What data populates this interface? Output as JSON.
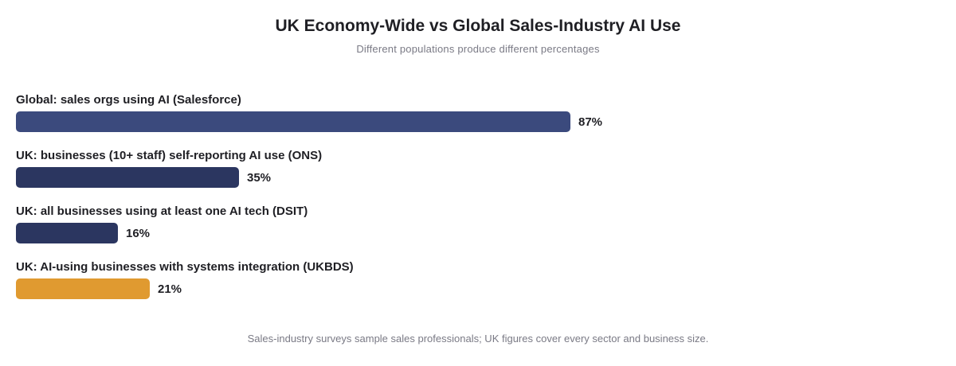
{
  "header": {
    "title": "UK Economy-Wide vs Global Sales-Industry AI Use",
    "subtitle": "Different populations produce different percentages"
  },
  "footnote": "Sales-industry surveys sample sales professionals; UK figures cover every sector and business size.",
  "chart_data": {
    "type": "bar",
    "orientation": "horizontal",
    "categories": [
      "Global: sales orgs using AI (Salesforce)",
      "UK: businesses (10+ staff) self-reporting AI use (ONS)",
      "UK: all businesses using at least one AI tech (DSIT)",
      "UK: AI-using businesses with systems integration (UKBDS)"
    ],
    "values": [
      87,
      35,
      16,
      21
    ],
    "value_labels": [
      "87%",
      "35%",
      "16%",
      "21%"
    ],
    "colors": [
      "#3b4a7d",
      "#2b3660",
      "#2b3660",
      "#e09a30"
    ],
    "unit": "%",
    "xlim": [
      0,
      100
    ],
    "grid": false,
    "legend": "none"
  }
}
